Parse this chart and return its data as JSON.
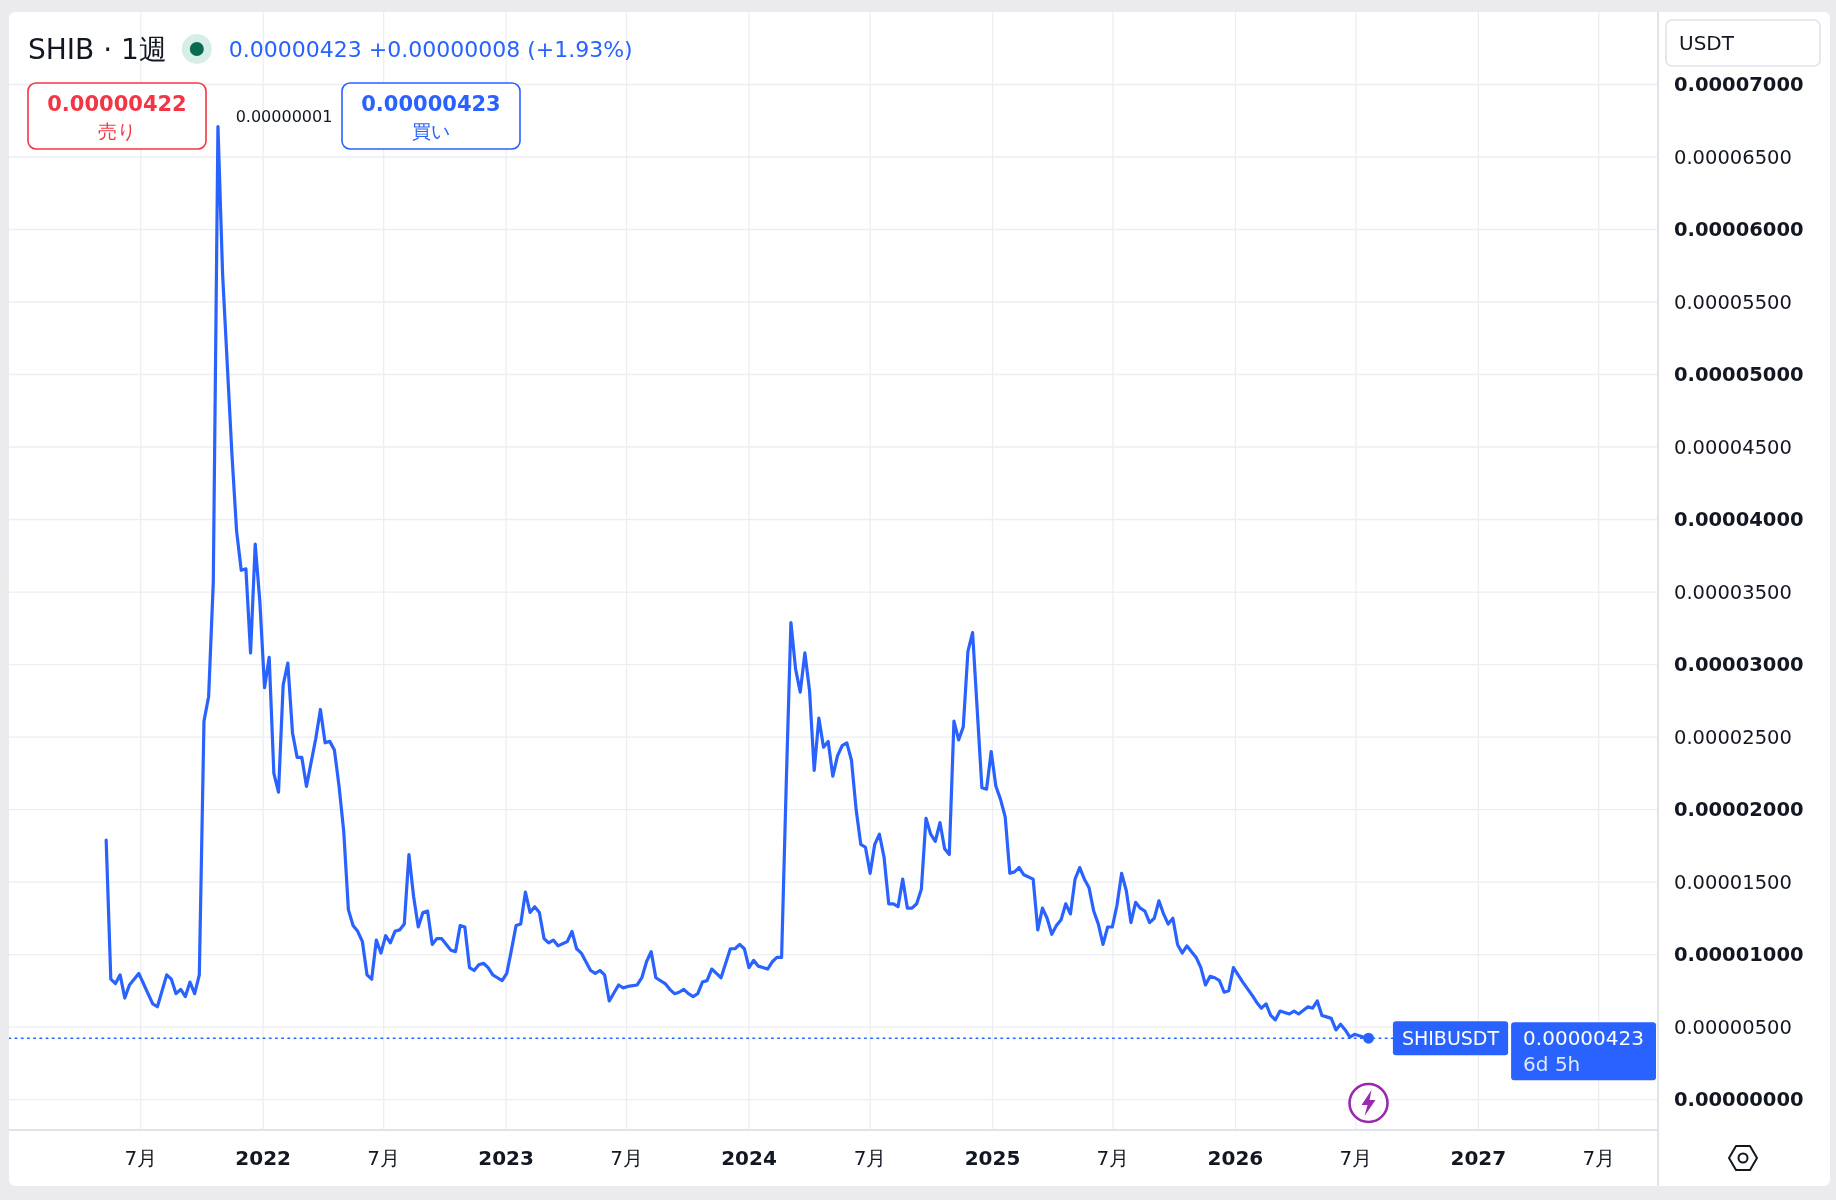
{
  "chart_data": {
    "type": "line",
    "title": "SHIB · 1週",
    "x": [
      "2021-05-10",
      "2021-05-17",
      "2021-05-24",
      "2021-05-31",
      "2021-06-07",
      "2021-06-14",
      "2021-06-28",
      "2021-07-05",
      "2021-07-19",
      "2021-07-26",
      "2021-08-09",
      "2021-08-16",
      "2021-08-23",
      "2021-08-30",
      "2021-09-06",
      "2021-09-13",
      "2021-09-20",
      "2021-09-27",
      "2021-10-04",
      "2021-10-11",
      "2021-10-18",
      "2021-10-25",
      "2021-11-01",
      "2021-11-15",
      "2021-11-22",
      "2021-11-29",
      "2021-12-06",
      "2021-12-13",
      "2021-12-20",
      "2021-12-27",
      "2022-01-03",
      "2022-01-10",
      "2022-01-17",
      "2022-01-24",
      "2022-01-31",
      "2022-02-07",
      "2022-02-14",
      "2022-02-21",
      "2022-02-28",
      "2022-03-07",
      "2022-03-21",
      "2022-03-28",
      "2022-04-04",
      "2022-04-11",
      "2022-04-18",
      "2022-04-25",
      "2022-05-02",
      "2022-05-09",
      "2022-05-16",
      "2022-05-23",
      "2022-05-30",
      "2022-06-06",
      "2022-06-13",
      "2022-06-20",
      "2022-06-27",
      "2022-07-04",
      "2022-07-11",
      "2022-07-18",
      "2022-07-25",
      "2022-08-01",
      "2022-08-08",
      "2022-08-15",
      "2022-08-22",
      "2022-08-29",
      "2022-09-05",
      "2022-09-12",
      "2022-09-19",
      "2022-09-26",
      "2022-10-10",
      "2022-10-17",
      "2022-10-24",
      "2022-10-31",
      "2022-11-07",
      "2022-11-14",
      "2022-11-21",
      "2022-11-28",
      "2022-12-05",
      "2022-12-12",
      "2022-12-19",
      "2022-12-26",
      "2023-01-02",
      "2023-01-09",
      "2023-01-16",
      "2023-01-23",
      "2023-01-30",
      "2023-02-06",
      "2023-02-13",
      "2023-02-20",
      "2023-02-27",
      "2023-03-06",
      "2023-03-13",
      "2023-03-20",
      "2023-04-03",
      "2023-04-10",
      "2023-04-17",
      "2023-04-24",
      "2023-05-08",
      "2023-05-15",
      "2023-05-22",
      "2023-05-29",
      "2023-06-05",
      "2023-06-19",
      "2023-06-26",
      "2023-07-03",
      "2023-07-17",
      "2023-07-24",
      "2023-07-31",
      "2023-08-07",
      "2023-08-14",
      "2023-08-28",
      "2023-09-04",
      "2023-09-11",
      "2023-09-18",
      "2023-09-25",
      "2023-10-02",
      "2023-10-09",
      "2023-10-16",
      "2023-10-23",
      "2023-10-30",
      "2023-11-06",
      "2023-11-13",
      "2023-11-20",
      "2023-12-04",
      "2023-12-11",
      "2023-12-18",
      "2023-12-25",
      "2024-01-01",
      "2024-01-08",
      "2024-01-15",
      "2024-01-29",
      "2024-02-05",
      "2024-02-12",
      "2024-02-19",
      "2024-02-26",
      "2024-03-04",
      "2024-03-11",
      "2024-03-18",
      "2024-03-25",
      "2024-04-01",
      "2024-04-08",
      "2024-04-15",
      "2024-04-22",
      "2024-04-29",
      "2024-05-06",
      "2024-05-13",
      "2024-05-20",
      "2024-05-27",
      "2024-06-03",
      "2024-06-10",
      "2024-06-17",
      "2024-06-24",
      "2024-07-01",
      "2024-07-08",
      "2024-07-15",
      "2024-07-22",
      "2024-07-29",
      "2024-08-05",
      "2024-08-12",
      "2024-08-19",
      "2024-08-26",
      "2024-09-02",
      "2024-09-09",
      "2024-09-16",
      "2024-09-23",
      "2024-09-30",
      "2024-10-07",
      "2024-10-14",
      "2024-10-21",
      "2024-10-28",
      "2024-11-04",
      "2024-11-11",
      "2024-11-18",
      "2024-11-25",
      "2024-12-02",
      "2024-12-16",
      "2024-12-23",
      "2024-12-30",
      "2025-01-06",
      "2025-01-13",
      "2025-01-20",
      "2025-01-27",
      "2025-02-03",
      "2025-02-10",
      "2025-02-17",
      "2025-03-03",
      "2025-03-10",
      "2025-03-17",
      "2025-03-24",
      "2025-03-31",
      "2025-04-07",
      "2025-04-14",
      "2025-04-21",
      "2025-04-28",
      "2025-05-05",
      "2025-05-12",
      "2025-05-19",
      "2025-05-26",
      "2025-06-02",
      "2025-06-09",
      "2025-06-16",
      "2025-06-23",
      "2025-06-30",
      "2025-07-07",
      "2025-07-14",
      "2025-07-21",
      "2025-07-28",
      "2025-08-04",
      "2025-08-11",
      "2025-08-18",
      "2025-08-25",
      "2025-09-01",
      "2025-09-08",
      "2025-09-15",
      "2025-09-22",
      "2025-09-29",
      "2025-10-06",
      "2025-10-13",
      "2025-10-20",
      "2025-10-27",
      "2025-11-03",
      "2025-11-10",
      "2025-11-17",
      "2025-11-24",
      "2025-12-01",
      "2025-12-08",
      "2025-12-15",
      "2025-12-22",
      "2025-12-29",
      "2026-01-05",
      "2026-01-12",
      "2026-01-26",
      "2026-02-02",
      "2026-02-09",
      "2026-02-16",
      "2026-02-23",
      "2026-03-02",
      "2026-03-09",
      "2026-03-23",
      "2026-03-30",
      "2026-04-06",
      "2026-04-20",
      "2026-04-27",
      "2026-05-04",
      "2026-05-11",
      "2026-05-18",
      "2026-05-25",
      "2026-06-01",
      "2026-06-08",
      "2026-06-15",
      "2026-06-22",
      "2026-06-29",
      "2026-07-13",
      "2026-07-20"
    ],
    "series": [
      {
        "color": "#2962ff",
        "values": [
          1.79e-05,
          8.3e-06,
          8e-06,
          8.6e-06,
          7e-06,
          7.9e-06,
          8.7e-06,
          8e-06,
          6.6e-06,
          6.4e-06,
          8.6e-06,
          8.3e-06,
          7.3e-06,
          7.6e-06,
          7.1e-06,
          8.1e-06,
          7.3e-06,
          8.6e-06,
          2.61e-05,
          2.78e-05,
          3.57e-05,
          6.71e-05,
          5.69e-05,
          4.45e-05,
          3.92e-05,
          3.65e-05,
          3.66e-05,
          3.08e-05,
          3.83e-05,
          3.43e-05,
          2.84e-05,
          3.05e-05,
          2.25e-05,
          2.12e-05,
          2.86e-05,
          3.01e-05,
          2.53e-05,
          2.36e-05,
          2.36e-05,
          2.16e-05,
          2.49e-05,
          2.69e-05,
          2.46e-05,
          2.47e-05,
          2.41e-05,
          2.16e-05,
          1.85e-05,
          1.31e-05,
          1.2e-05,
          1.16e-05,
          1.09e-05,
          8.6e-06,
          8.3e-06,
          1.1e-05,
          1.01e-05,
          1.13e-05,
          1.08e-05,
          1.16e-05,
          1.17e-05,
          1.21e-05,
          1.69e-05,
          1.4e-05,
          1.19e-05,
          1.29e-05,
          1.3e-05,
          1.07e-05,
          1.11e-05,
          1.11e-05,
          1.03e-05,
          1.02e-05,
          1.2e-05,
          1.19e-05,
          9.1e-06,
          8.9e-06,
          9.3e-06,
          9.4e-06,
          9.1e-06,
          8.6e-06,
          8.4e-06,
          8.2e-06,
          8.7e-06,
          1.03e-05,
          1.2e-05,
          1.21e-05,
          1.43e-05,
          1.29e-05,
          1.33e-05,
          1.29e-05,
          1.11e-05,
          1.08e-05,
          1.1e-05,
          1.06e-05,
          1.09e-05,
          1.16e-05,
          1.04e-05,
          1.01e-05,
          8.9e-06,
          8.7e-06,
          8.9e-06,
          8.6e-06,
          6.8e-06,
          7.9e-06,
          7.7e-06,
          7.8e-06,
          7.9e-06,
          8.4e-06,
          9.5e-06,
          1.02e-05,
          8.4e-06,
          8e-06,
          7.6e-06,
          7.3e-06,
          7.4e-06,
          7.6e-06,
          7.3e-06,
          7.1e-06,
          7.3e-06,
          8.1e-06,
          8.2e-06,
          9e-06,
          8.7e-06,
          8.4e-06,
          1.04e-05,
          1.04e-05,
          1.07e-05,
          1.04e-05,
          9.1e-06,
          9.6e-06,
          9.2e-06,
          9e-06,
          9.5e-06,
          9.8e-06,
          9.8e-06,
          2.18e-05,
          3.29e-05,
          2.97e-05,
          2.81e-05,
          3.08e-05,
          2.82e-05,
          2.27e-05,
          2.63e-05,
          2.43e-05,
          2.47e-05,
          2.23e-05,
          2.37e-05,
          2.44e-05,
          2.46e-05,
          2.34e-05,
          2e-05,
          1.76e-05,
          1.74e-05,
          1.56e-05,
          1.76e-05,
          1.83e-05,
          1.67e-05,
          1.35e-05,
          1.35e-05,
          1.33e-05,
          1.52e-05,
          1.32e-05,
          1.32e-05,
          1.35e-05,
          1.45e-05,
          1.94e-05,
          1.83e-05,
          1.78e-05,
          1.91e-05,
          1.73e-05,
          1.69e-05,
          2.61e-05,
          2.48e-05,
          2.57e-05,
          3.09e-05,
          3.22e-05,
          2.15e-05,
          2.14e-05,
          2.4e-05,
          2.16e-05,
          2.07e-05,
          1.95e-05,
          1.56e-05,
          1.57e-05,
          1.6e-05,
          1.55e-05,
          1.52e-05,
          1.17e-05,
          1.32e-05,
          1.25e-05,
          1.14e-05,
          1.2e-05,
          1.24e-05,
          1.35e-05,
          1.28e-05,
          1.52e-05,
          1.6e-05,
          1.52e-05,
          1.46e-05,
          1.3e-05,
          1.21e-05,
          1.07e-05,
          1.19e-05,
          1.19e-05,
          1.34e-05,
          1.56e-05,
          1.44e-05,
          1.22e-05,
          1.36e-05,
          1.32e-05,
          1.3e-05,
          1.22e-05,
          1.25e-05,
          1.37e-05,
          1.28e-05,
          1.21e-05,
          1.25e-05,
          1.07e-05,
          1.01e-05,
          1.06e-05,
          1.02e-05,
          9.8e-06,
          9.1e-06,
          7.9e-06,
          8.5e-06,
          8.4e-06,
          8.2e-06,
          7.4e-06,
          7.5e-06,
          9.1e-06,
          8.6e-06,
          8.1e-06,
          7.2e-06,
          6.7e-06,
          6.3e-06,
          6.6e-06,
          5.8e-06,
          5.5e-06,
          6.1e-06,
          5.9e-06,
          6.1e-06,
          5.9e-06,
          6.4e-06,
          6.3e-06,
          6.8e-06,
          5.8e-06,
          5.7e-06,
          5.6e-06,
          4.8e-06,
          5.2e-06,
          4.8e-06,
          4.3e-06,
          4.5e-06,
          4.3e-06,
          4.23e-06
        ]
      },
      {
        "type": "scatter",
        "x": [
          "2026-07-20"
        ],
        "values": [
          4.23e-06
        ],
        "color": "#2962ff",
        "marker": "circle"
      }
    ],
    "xlim": [
      "2020-12-15",
      "2027-09-28"
    ],
    "ylim": [
      -2.1e-06,
      7.5e-05
    ],
    "xticks": [
      {
        "value": "2021-07-01",
        "label": "7月"
      },
      {
        "value": "2022-01-01",
        "label": "2022"
      },
      {
        "value": "2022-07-01",
        "label": "7月"
      },
      {
        "value": "2023-01-01",
        "label": "2023"
      },
      {
        "value": "2023-07-01",
        "label": "7月"
      },
      {
        "value": "2024-01-01",
        "label": "2024"
      },
      {
        "value": "2024-07-01",
        "label": "7月"
      },
      {
        "value": "2025-01-01",
        "label": "2025"
      },
      {
        "value": "2025-07-01",
        "label": "7月"
      },
      {
        "value": "2026-01-01",
        "label": "2026"
      },
      {
        "value": "2026-07-01",
        "label": "7月"
      },
      {
        "value": "2027-01-01",
        "label": "2027"
      },
      {
        "value": "2027-07-01",
        "label": "7月"
      }
    ],
    "yticks": [
      {
        "value": 0,
        "label": "0.00000000"
      },
      {
        "value": 5e-06,
        "label": "0.00000500"
      },
      {
        "value": 1e-05,
        "label": "0.00001000"
      },
      {
        "value": 1.5e-05,
        "label": "0.00001500"
      },
      {
        "value": 2e-05,
        "label": "0.00002000"
      },
      {
        "value": 2.5e-05,
        "label": "0.00002500"
      },
      {
        "value": 3e-05,
        "label": "0.00003000"
      },
      {
        "value": 3.5e-05,
        "label": "0.00003500"
      },
      {
        "value": 4e-05,
        "label": "0.00004000"
      },
      {
        "value": 4.5e-05,
        "label": "0.00004500"
      },
      {
        "value": 5e-05,
        "label": "0.00005000"
      },
      {
        "value": 5.5e-05,
        "label": "0.00005500"
      },
      {
        "value": 6e-05,
        "label": "0.00006000"
      },
      {
        "value": 6.5e-05,
        "label": "0.00006500"
      },
      {
        "value": 7e-05,
        "label": "0.00007000"
      }
    ],
    "grid": true,
    "ref_lines": [
      {
        "axis": "y",
        "value": 4.23e-06,
        "label": "SHIBUSDT",
        "color": "#2962ff",
        "line_style": "dotted"
      }
    ],
    "annotations": [
      "0.00000423 +0.00000008 (+1.93%)",
      "0.00000422",
      "売り",
      "0.00000001",
      "0.00000423",
      "買い",
      "USDT",
      "0.00000423",
      "6d 5h"
    ]
  }
}
